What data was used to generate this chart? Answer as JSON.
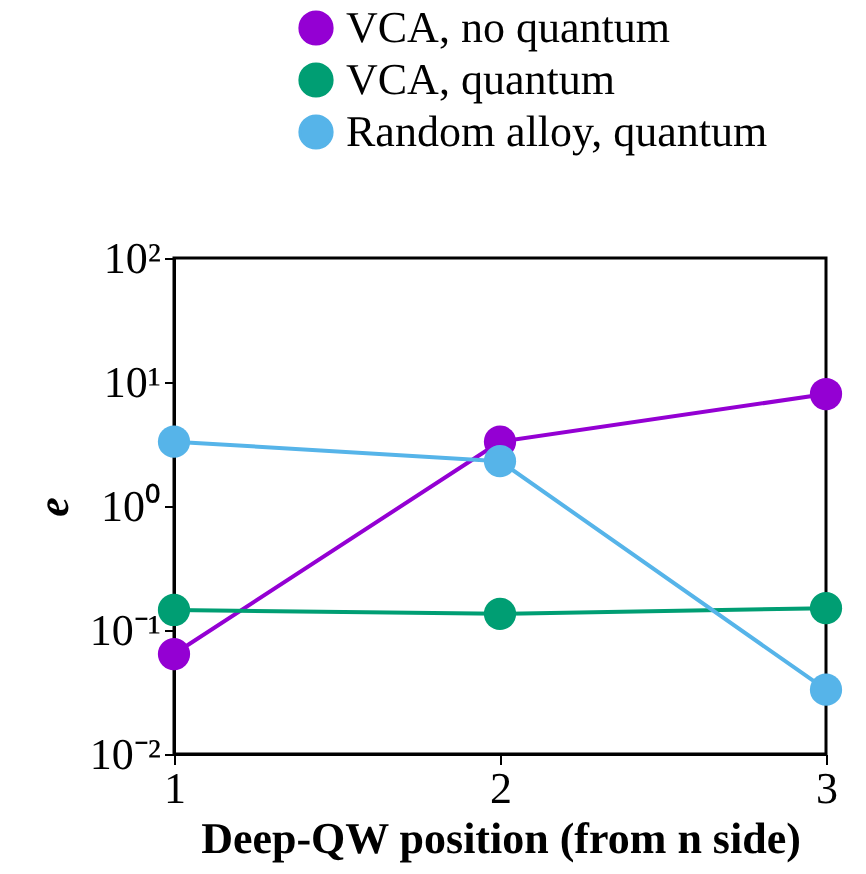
{
  "chart_data": {
    "type": "line",
    "xlabel": "Deep-QW position (from n side)",
    "ylabel": "e",
    "x": [
      1,
      2,
      3
    ],
    "xlim": [
      1,
      3
    ],
    "xticks": [
      1,
      2,
      3
    ],
    "ylim": [
      0.01,
      100
    ],
    "yticks": [
      {
        "value": 0.01,
        "label": "10⁻²"
      },
      {
        "value": 0.1,
        "label": "10⁻¹"
      },
      {
        "value": 1,
        "label": "10⁰"
      },
      {
        "value": 10,
        "label": "10¹"
      },
      {
        "value": 100,
        "label": "10²"
      }
    ],
    "log": "y",
    "marker": "circle",
    "legend": "top right",
    "grid": false,
    "series": [
      {
        "name": "VCA, no quantum",
        "color": "#9400d3",
        "values": [
          0.064,
          3.3,
          8.0
        ]
      },
      {
        "name": "VCA,     quantum",
        "color": "#009e73",
        "values": [
          0.145,
          0.135,
          0.15
        ]
      },
      {
        "name": "Random alloy,     quantum",
        "color": "#56b4e9",
        "values": [
          3.3,
          2.3,
          0.033
        ]
      }
    ]
  }
}
